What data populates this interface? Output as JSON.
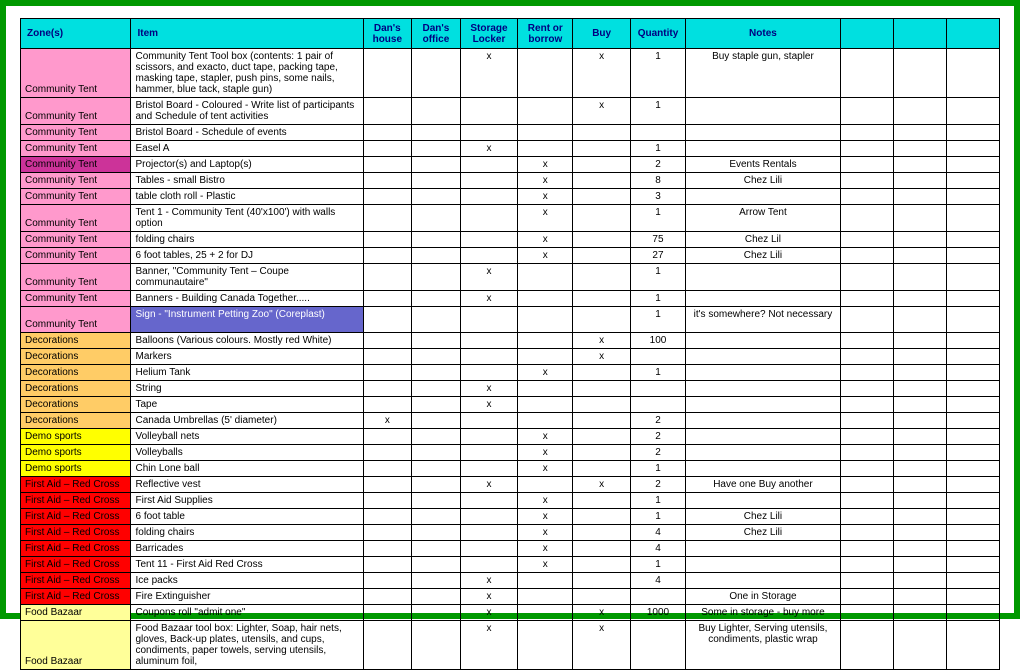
{
  "headers": {
    "zone": "Zone(s)",
    "item": "Item",
    "dans_house": "Dan's house",
    "dans_office": "Dan's office",
    "storage_locker": "Storage Locker",
    "rent_borrow": "Rent or borrow",
    "buy": "Buy",
    "quantity": "Quantity",
    "notes": "Notes"
  },
  "zone_colors": {
    "community_tent": "#ff99cc",
    "community_tent_dark": "#cc3399",
    "decorations": "#ffcc66",
    "demo_sports": "#ffff00",
    "first_aid": "#ff0000",
    "food_bazaar": "#ffff99",
    "sign_item": "#6666cc"
  },
  "rows": [
    {
      "zone": "Community Tent",
      "zc": "community_tent",
      "item": "Community Tent Tool box (contents: 1 pair of scissors, and exacto, duct tape, packing tape, masking tape, stapler, push pins, some nails, hammer, blue tack, staple gun)",
      "dh": "",
      "do": "",
      "sl": "x",
      "rb": "",
      "buy": "x",
      "qty": "1",
      "notes": "Buy staple gun, stapler",
      "h": "tall"
    },
    {
      "zone": "Community Tent",
      "zc": "community_tent",
      "item": "Bristol Board - Coloured - Write list of participants and Schedule of tent activities",
      "dh": "",
      "do": "",
      "sl": "",
      "rb": "",
      "buy": "x",
      "qty": "1",
      "notes": "",
      "h": "med"
    },
    {
      "zone": "Community Tent",
      "zc": "community_tent",
      "item": "Bristol Board - Schedule of events",
      "dh": "",
      "do": "",
      "sl": "",
      "rb": "",
      "buy": "",
      "qty": "",
      "notes": ""
    },
    {
      "zone": "Community Tent",
      "zc": "community_tent",
      "item": "Easel A",
      "dh": "",
      "do": "",
      "sl": "x",
      "rb": "",
      "buy": "",
      "qty": "1",
      "notes": ""
    },
    {
      "zone": "Community Tent",
      "zc": "community_tent_dark",
      "item": "Projector(s) and Laptop(s)",
      "dh": "",
      "do": "",
      "sl": "",
      "rb": "x",
      "buy": "",
      "qty": "2",
      "notes": "Events Rentals"
    },
    {
      "zone": "Community Tent",
      "zc": "community_tent",
      "item": "Tables - small Bistro",
      "dh": "",
      "do": "",
      "sl": "",
      "rb": "x",
      "buy": "",
      "qty": "8",
      "notes": "Chez Lili"
    },
    {
      "zone": "Community Tent",
      "zc": "community_tent",
      "item": "table cloth roll - Plastic",
      "dh": "",
      "do": "",
      "sl": "",
      "rb": "x",
      "buy": "",
      "qty": "3",
      "notes": ""
    },
    {
      "zone": "Community Tent",
      "zc": "community_tent",
      "item": "Tent 1 - Community Tent (40'x100') with walls option",
      "dh": "",
      "do": "",
      "sl": "",
      "rb": "x",
      "buy": "",
      "qty": "1",
      "notes": "Arrow Tent",
      "h": "med"
    },
    {
      "zone": "Community Tent",
      "zc": "community_tent",
      "item": "folding chairs",
      "dh": "",
      "do": "",
      "sl": "",
      "rb": "x",
      "buy": "",
      "qty": "75",
      "notes": "Chez Lil"
    },
    {
      "zone": "Community Tent",
      "zc": "community_tent",
      "item": "6 foot tables, 25 + 2 for DJ",
      "dh": "",
      "do": "",
      "sl": "",
      "rb": "x",
      "buy": "",
      "qty": "27",
      "notes": "Chez Lili"
    },
    {
      "zone": "Community Tent",
      "zc": "community_tent",
      "item": "Banner, \"Community Tent – Coupe communautaire\"",
      "dh": "",
      "do": "",
      "sl": "x",
      "rb": "",
      "buy": "",
      "qty": "1",
      "notes": "",
      "h": "med"
    },
    {
      "zone": "Community Tent",
      "zc": "community_tent",
      "item": "Banners - Building Canada Together.....",
      "dh": "",
      "do": "",
      "sl": "x",
      "rb": "",
      "buy": "",
      "qty": "1",
      "notes": ""
    },
    {
      "zone": "Community Tent",
      "zc": "community_tent",
      "item": "Sign - \"Instrument Petting Zoo\"  (Coreplast)",
      "item_bg": "sign_item",
      "dh": "",
      "do": "",
      "sl": "",
      "rb": "",
      "buy": "",
      "qty": "1",
      "notes": "it's somewhere? Not necessary",
      "h": "med"
    },
    {
      "zone": "Decorations",
      "zc": "decorations",
      "item": "Balloons (Various colours. Mostly red White)",
      "dh": "",
      "do": "",
      "sl": "",
      "rb": "",
      "buy": "x",
      "qty": "100",
      "notes": ""
    },
    {
      "zone": "Decorations",
      "zc": "decorations",
      "item": "Markers",
      "dh": "",
      "do": "",
      "sl": "",
      "rb": "",
      "buy": "x",
      "qty": "",
      "notes": ""
    },
    {
      "zone": "Decorations",
      "zc": "decorations",
      "item": "Helium Tank",
      "dh": "",
      "do": "",
      "sl": "",
      "rb": "x",
      "buy": "",
      "qty": "1",
      "notes": ""
    },
    {
      "zone": "Decorations",
      "zc": "decorations",
      "item": "String",
      "dh": "",
      "do": "",
      "sl": "x",
      "rb": "",
      "buy": "",
      "qty": "",
      "notes": ""
    },
    {
      "zone": "Decorations",
      "zc": "decorations",
      "item": "Tape",
      "dh": "",
      "do": "",
      "sl": "x",
      "rb": "",
      "buy": "",
      "qty": "",
      "notes": ""
    },
    {
      "zone": "Decorations",
      "zc": "decorations",
      "item": "Canada Umbrellas (5' diameter)",
      "dh": "x",
      "do": "",
      "sl": "",
      "rb": "",
      "buy": "",
      "qty": "2",
      "notes": ""
    },
    {
      "zone": "Demo sports",
      "zc": "demo_sports",
      "item": "Volleyball nets",
      "dh": "",
      "do": "",
      "sl": "",
      "rb": "x",
      "buy": "",
      "qty": "2",
      "notes": ""
    },
    {
      "zone": "Demo sports",
      "zc": "demo_sports",
      "item": "Volleyballs",
      "dh": "",
      "do": "",
      "sl": "",
      "rb": "x",
      "buy": "",
      "qty": "2",
      "notes": ""
    },
    {
      "zone": "Demo sports",
      "zc": "demo_sports",
      "item": "Chin Lone ball",
      "dh": "",
      "do": "",
      "sl": "",
      "rb": "x",
      "buy": "",
      "qty": "1",
      "notes": ""
    },
    {
      "zone": "First Aid – Red Cross",
      "zc": "first_aid",
      "item": "Reflective vest",
      "dh": "",
      "do": "",
      "sl": "x",
      "rb": "",
      "buy": "x",
      "qty": "2",
      "notes": "Have one Buy another"
    },
    {
      "zone": "First Aid – Red Cross",
      "zc": "first_aid",
      "item": "First Aid Supplies",
      "dh": "",
      "do": "",
      "sl": "",
      "rb": "x",
      "buy": "",
      "qty": "1",
      "notes": ""
    },
    {
      "zone": "First Aid – Red Cross",
      "zc": "first_aid",
      "item": "6 foot table",
      "dh": "",
      "do": "",
      "sl": "",
      "rb": "x",
      "buy": "",
      "qty": "1",
      "notes": "Chez Lili"
    },
    {
      "zone": "First Aid – Red Cross",
      "zc": "first_aid",
      "item": "folding chairs",
      "dh": "",
      "do": "",
      "sl": "",
      "rb": "x",
      "buy": "",
      "qty": "4",
      "notes": "Chez Lili"
    },
    {
      "zone": "First Aid – Red Cross",
      "zc": "first_aid",
      "item": "Barricades",
      "dh": "",
      "do": "",
      "sl": "",
      "rb": "x",
      "buy": "",
      "qty": "4",
      "notes": ""
    },
    {
      "zone": "First Aid – Red Cross",
      "zc": "first_aid",
      "item": "Tent 11 - First Aid Red Cross",
      "dh": "",
      "do": "",
      "sl": "",
      "rb": "x",
      "buy": "",
      "qty": "1",
      "notes": ""
    },
    {
      "zone": "First Aid – Red Cross",
      "zc": "first_aid",
      "item": "Ice packs",
      "dh": "",
      "do": "",
      "sl": "x",
      "rb": "",
      "buy": "",
      "qty": "4",
      "notes": ""
    },
    {
      "zone": "First Aid – Red Cross",
      "zc": "first_aid",
      "item": "Fire Extinguisher",
      "dh": "",
      "do": "",
      "sl": "x",
      "rb": "",
      "buy": "",
      "qty": "",
      "notes": "One in Storage"
    },
    {
      "zone": "Food Bazaar",
      "zc": "food_bazaar",
      "item": "Coupons roll \"admit one\"",
      "dh": "",
      "do": "",
      "sl": "x",
      "rb": "",
      "buy": "x",
      "qty": "1000",
      "notes": "Some in storage - buy more"
    },
    {
      "zone": "Food Bazaar",
      "zc": "food_bazaar",
      "item": "Food Bazaar tool box: Lighter, Soap, hair nets, gloves, Back-up plates, utensils, and cups, condiments, paper towels, serving utensils,  aluminum foil,",
      "dh": "",
      "do": "",
      "sl": "x",
      "rb": "",
      "buy": "x",
      "qty": "",
      "notes": "Buy Lighter, Serving utensils, condiments, plastic wrap",
      "h": "tall"
    }
  ]
}
